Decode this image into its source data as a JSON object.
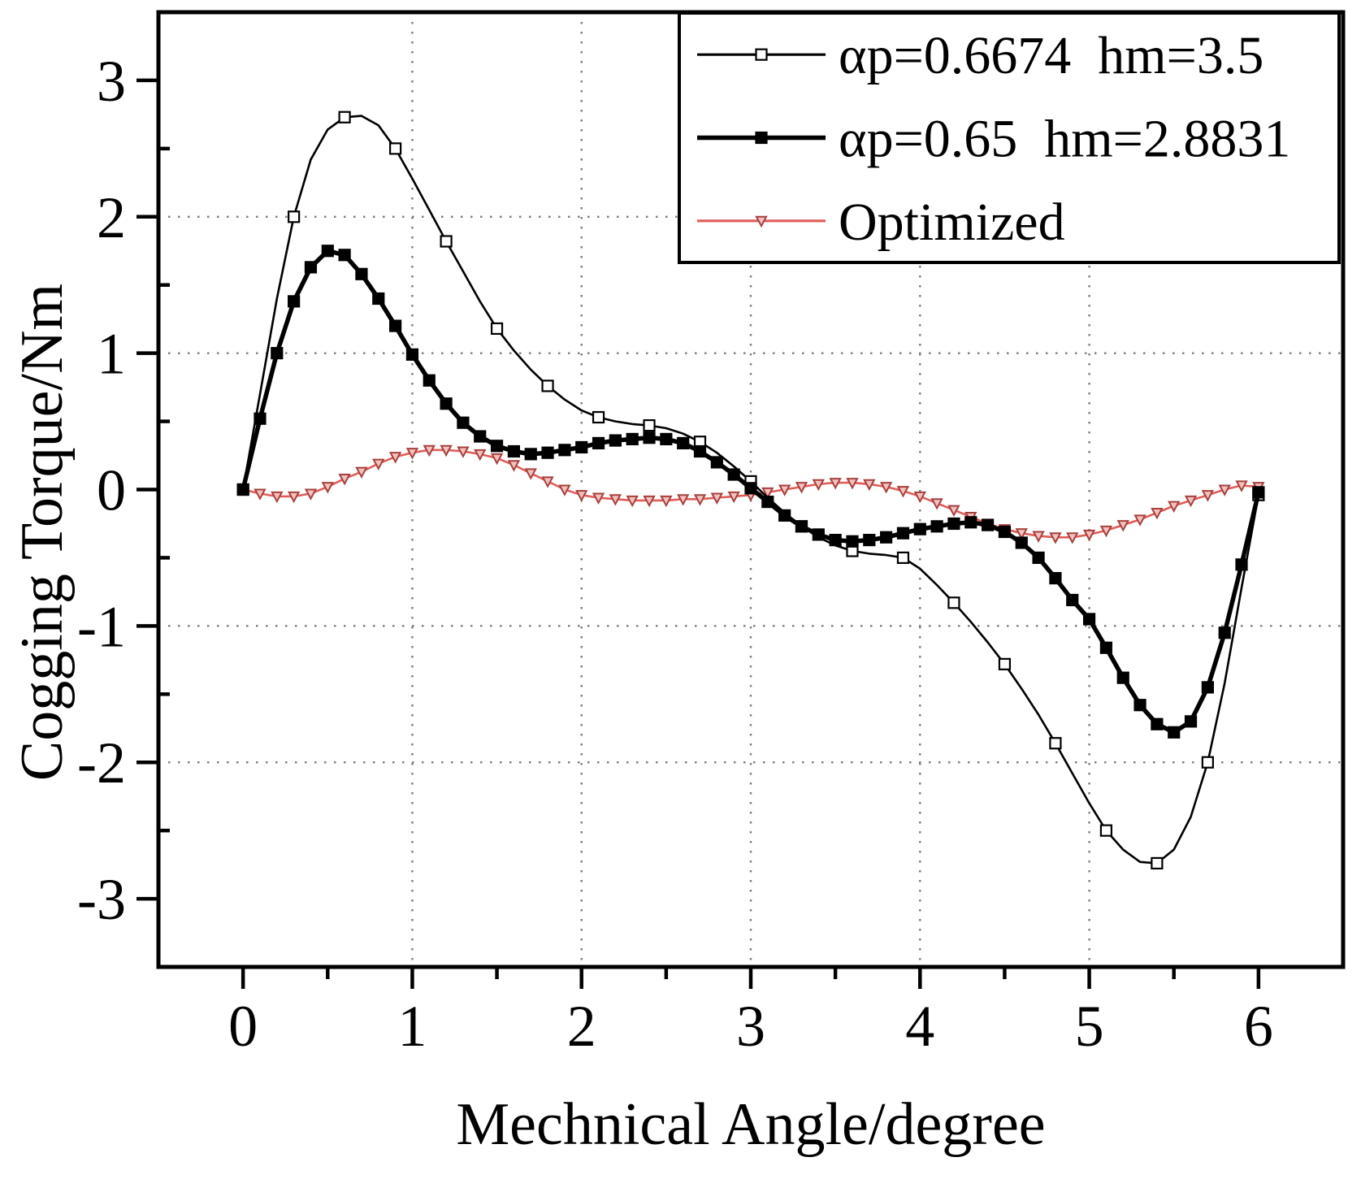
{
  "chart_data": {
    "type": "line",
    "title": "",
    "xlabel": "Mechnical Angle/degree",
    "ylabel": "Cogging Torque/Nm",
    "xlim": [
      -0.5,
      6.5
    ],
    "ylim": [
      -3.5,
      3.5
    ],
    "x_ticks": [
      0,
      1,
      2,
      3,
      4,
      5,
      6
    ],
    "y_ticks": [
      3,
      2,
      1,
      0,
      -1,
      -2,
      -3
    ],
    "x_minor_step": 0.5,
    "y_minor_step": 0.5,
    "grid": {
      "style": "dotted",
      "color": "#7d7d7d",
      "x_lines": [
        1,
        2,
        3,
        4,
        5
      ],
      "y_lines": [
        -2,
        -1,
        1,
        2
      ]
    },
    "legend": {
      "position": "top-right"
    },
    "x_start": 0,
    "x_step": 0.1,
    "series": [
      {
        "name": "αp=0.6674  hm=3.5",
        "color": "#000000",
        "line_width": 2.6,
        "marker": "open-square",
        "marker_color": "#000000",
        "marker_fill": "#ffffff",
        "marker_size": 13,
        "marker_every": 3,
        "values": [
          0.0,
          0.7,
          1.4,
          2.0,
          2.42,
          2.64,
          2.73,
          2.74,
          2.67,
          2.5,
          2.28,
          2.05,
          1.82,
          1.6,
          1.38,
          1.18,
          1.02,
          0.88,
          0.76,
          0.66,
          0.58,
          0.53,
          0.5,
          0.48,
          0.47,
          0.45,
          0.41,
          0.35,
          0.27,
          0.17,
          0.06,
          -0.06,
          -0.17,
          -0.27,
          -0.35,
          -0.41,
          -0.45,
          -0.47,
          -0.48,
          -0.5,
          -0.58,
          -0.7,
          -0.83,
          -0.97,
          -1.12,
          -1.28,
          -1.46,
          -1.65,
          -1.86,
          -2.08,
          -2.3,
          -2.5,
          -2.64,
          -2.73,
          -2.74,
          -2.64,
          -2.4,
          -2.0,
          -1.42,
          -0.72,
          -0.04
        ]
      },
      {
        "name": "αp=0.65  hm=2.8831",
        "color": "#000000",
        "line_width": 5.5,
        "marker": "filled-square",
        "marker_color": "#000000",
        "marker_fill": "#000000",
        "marker_size": 13,
        "marker_every": 1,
        "values": [
          0.0,
          0.52,
          1.0,
          1.38,
          1.63,
          1.75,
          1.72,
          1.58,
          1.4,
          1.2,
          0.99,
          0.8,
          0.63,
          0.49,
          0.39,
          0.32,
          0.28,
          0.26,
          0.27,
          0.29,
          0.31,
          0.34,
          0.36,
          0.37,
          0.38,
          0.37,
          0.34,
          0.28,
          0.2,
          0.11,
          0.01,
          -0.09,
          -0.19,
          -0.27,
          -0.33,
          -0.37,
          -0.38,
          -0.37,
          -0.35,
          -0.32,
          -0.29,
          -0.27,
          -0.25,
          -0.24,
          -0.26,
          -0.31,
          -0.39,
          -0.5,
          -0.65,
          -0.81,
          -0.95,
          -1.16,
          -1.38,
          -1.58,
          -1.72,
          -1.78,
          -1.7,
          -1.45,
          -1.05,
          -0.55,
          -0.02
        ]
      },
      {
        "name": "Optimized",
        "color": "#e05d5a",
        "line_width": 2.6,
        "marker": "triangle-down",
        "marker_color": "#a6403d",
        "marker_fill": "#f4c1bf",
        "marker_size": 12,
        "marker_every": 1,
        "values": [
          0.0,
          -0.03,
          -0.05,
          -0.05,
          -0.03,
          0.02,
          0.08,
          0.13,
          0.19,
          0.24,
          0.27,
          0.29,
          0.29,
          0.28,
          0.26,
          0.23,
          0.18,
          0.12,
          0.06,
          0.0,
          -0.04,
          -0.06,
          -0.07,
          -0.08,
          -0.08,
          -0.08,
          -0.07,
          -0.07,
          -0.06,
          -0.05,
          -0.04,
          -0.02,
          0.0,
          0.02,
          0.04,
          0.05,
          0.05,
          0.04,
          0.02,
          -0.01,
          -0.05,
          -0.1,
          -0.15,
          -0.2,
          -0.25,
          -0.29,
          -0.32,
          -0.34,
          -0.35,
          -0.35,
          -0.33,
          -0.3,
          -0.26,
          -0.22,
          -0.17,
          -0.12,
          -0.08,
          -0.04,
          0.0,
          0.03,
          0.02
        ]
      }
    ]
  }
}
